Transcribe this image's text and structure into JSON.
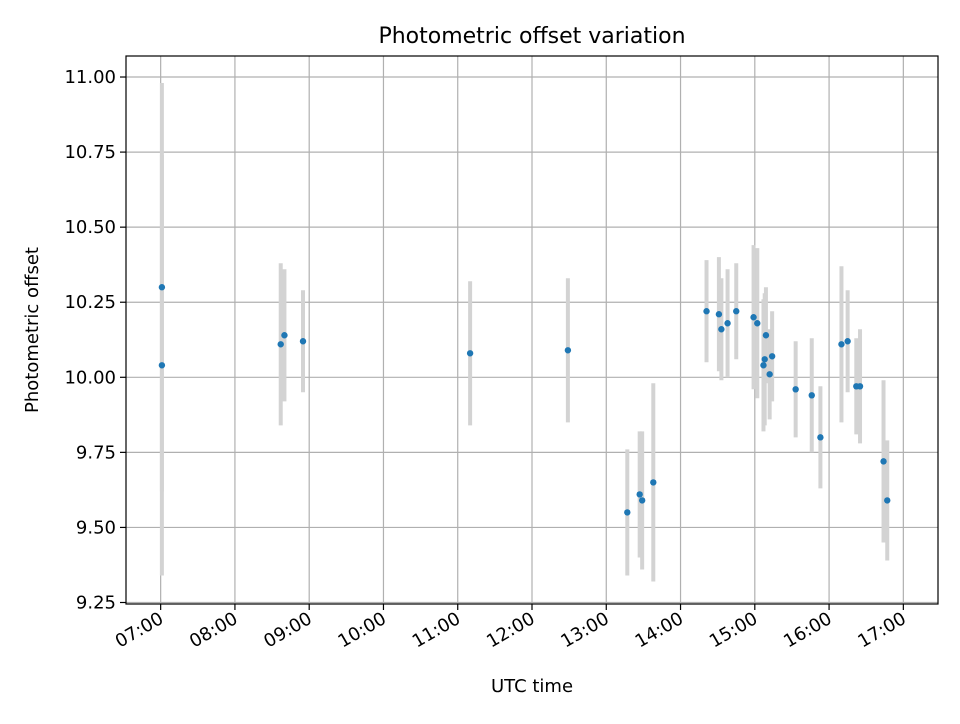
{
  "chart_data": {
    "type": "scatter",
    "title": "Photometric offset variation",
    "xlabel": "UTC time",
    "ylabel": "Photometric offset",
    "xlim": [
      "06:32",
      "17:28"
    ],
    "ylim": [
      9.245,
      11.07
    ],
    "grid": true,
    "legend": "none",
    "x_ticks": [
      "07:00",
      "08:00",
      "09:00",
      "10:00",
      "11:00",
      "12:00",
      "13:00",
      "14:00",
      "15:00",
      "16:00",
      "17:00"
    ],
    "y_ticks": [
      "9.25",
      "9.50",
      "9.75",
      "10.00",
      "10.25",
      "10.50",
      "10.75",
      "11.00"
    ],
    "colors": {
      "point": "#1f77b4",
      "errorbar": "#d3d3d3",
      "grid": "#b0b0b0"
    },
    "points": [
      {
        "x": "07:01",
        "y": 10.3,
        "yerr": 0.68
      },
      {
        "x": "07:01",
        "y": 10.04,
        "yerr": 0.7
      },
      {
        "x": "08:37",
        "y": 10.11,
        "yerr": 0.27
      },
      {
        "x": "08:40",
        "y": 10.14,
        "yerr": 0.22
      },
      {
        "x": "08:55",
        "y": 10.12,
        "yerr": 0.17
      },
      {
        "x": "11:10",
        "y": 10.08,
        "yerr": 0.24
      },
      {
        "x": "12:29",
        "y": 10.09,
        "yerr": 0.24
      },
      {
        "x": "13:17",
        "y": 9.55,
        "yerr": 0.21
      },
      {
        "x": "13:27",
        "y": 9.61,
        "yerr": 0.21
      },
      {
        "x": "13:29",
        "y": 9.59,
        "yerr": 0.23
      },
      {
        "x": "13:38",
        "y": 9.65,
        "yerr": 0.33
      },
      {
        "x": "14:21",
        "y": 10.22,
        "yerr": 0.17
      },
      {
        "x": "14:31",
        "y": 10.21,
        "yerr": 0.19
      },
      {
        "x": "14:33",
        "y": 10.16,
        "yerr": 0.17
      },
      {
        "x": "14:38",
        "y": 10.18,
        "yerr": 0.18
      },
      {
        "x": "14:45",
        "y": 10.22,
        "yerr": 0.16
      },
      {
        "x": "14:59",
        "y": 10.2,
        "yerr": 0.24
      },
      {
        "x": "15:02",
        "y": 10.18,
        "yerr": 0.25
      },
      {
        "x": "15:07",
        "y": 10.04,
        "yerr": 0.22
      },
      {
        "x": "15:08",
        "y": 10.06,
        "yerr": 0.22
      },
      {
        "x": "15:09",
        "y": 10.14,
        "yerr": 0.16
      },
      {
        "x": "15:12",
        "y": 10.01,
        "yerr": 0.15
      },
      {
        "x": "15:14",
        "y": 10.07,
        "yerr": 0.15
      },
      {
        "x": "15:33",
        "y": 9.96,
        "yerr": 0.16
      },
      {
        "x": "15:46",
        "y": 9.94,
        "yerr": 0.19
      },
      {
        "x": "15:53",
        "y": 9.8,
        "yerr": 0.17
      },
      {
        "x": "16:10",
        "y": 10.11,
        "yerr": 0.26
      },
      {
        "x": "16:15",
        "y": 10.12,
        "yerr": 0.17
      },
      {
        "x": "16:22",
        "y": 9.97,
        "yerr": 0.16
      },
      {
        "x": "16:25",
        "y": 9.97,
        "yerr": 0.19
      },
      {
        "x": "16:44",
        "y": 9.72,
        "yerr": 0.27
      },
      {
        "x": "16:47",
        "y": 9.59,
        "yerr": 0.2
      }
    ]
  }
}
